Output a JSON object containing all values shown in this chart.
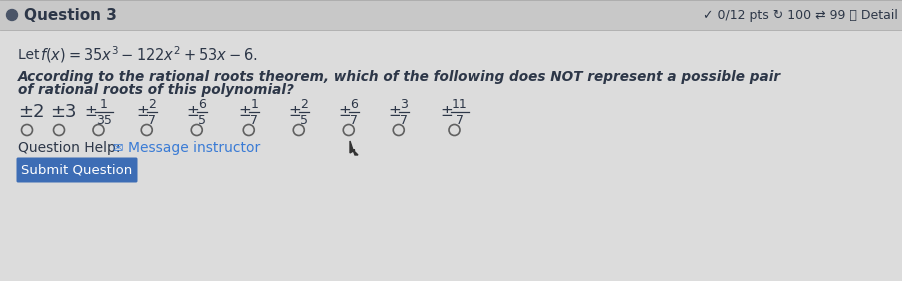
{
  "bg_color": "#dcdcdc",
  "header_text": "Question 3",
  "header_right": "✓ 0/12 pts ↻ 100 ⇄ 99 ⓘ Detail",
  "dot_color": "#4a5568",
  "line1_prefix": "Let  ",
  "line1_math": "f(x) = 35x^3 - 122x^2 + 53x - 6.",
  "question_line1": "According to the rational roots theorem, which of the following does NOT represent a possible pair",
  "question_line2": "of rational roots of this polynomial?",
  "options": [
    {
      "label": "±2",
      "numerator": null,
      "denominator": null
    },
    {
      "label": "±3",
      "numerator": null,
      "denominator": null
    },
    {
      "label": "±",
      "numerator": "1",
      "denominator": "35"
    },
    {
      "label": "±",
      "numerator": "2",
      "denominator": "7"
    },
    {
      "label": "±",
      "numerator": "6",
      "denominator": "5"
    },
    {
      "label": "±",
      "numerator": "1",
      "denominator": "7"
    },
    {
      "label": "±",
      "numerator": "2",
      "denominator": "5"
    },
    {
      "label": "±",
      "numerator": "6",
      "denominator": "7"
    },
    {
      "label": "±",
      "numerator": "3",
      "denominator": "7"
    },
    {
      "label": "±",
      "numerator": "11",
      "denominator": "7"
    }
  ],
  "help_label": "Question Help:",
  "help_link": "Message instructor",
  "submit_label": "Submit Question",
  "submit_bg": "#3d6db5",
  "submit_fg": "#ffffff",
  "text_color": "#2d3748",
  "link_color": "#3a7bd5",
  "header_bg": "#c8c8c8",
  "content_bg": "#dcdcdc",
  "radio_color": "#606060",
  "divider_color": "#aaaaaa"
}
